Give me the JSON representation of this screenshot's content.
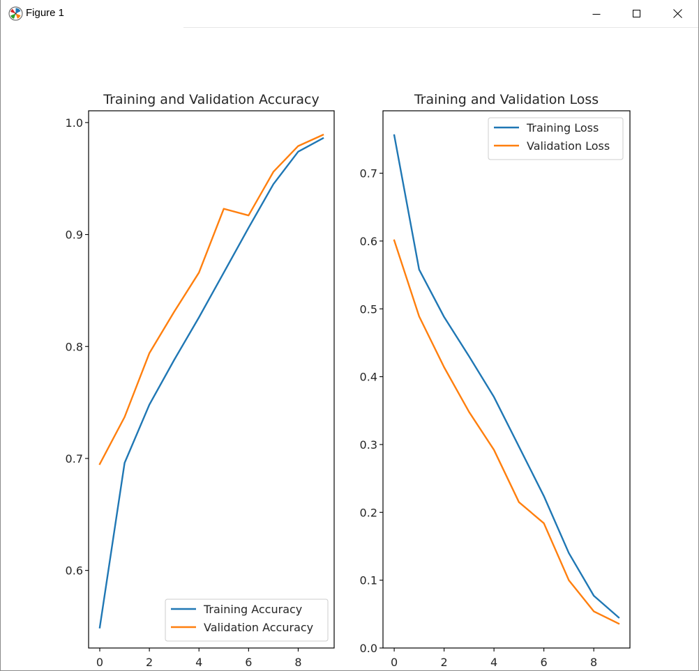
{
  "window": {
    "title": "Figure 1",
    "app_icon": "matplotlib-icon",
    "controls": {
      "minimize": "minimize-icon",
      "maximize": "maximize-icon",
      "close": "close-icon"
    }
  },
  "colors": {
    "series_blue": "#1f77b4",
    "series_orange": "#ff7f0e",
    "frame": "#000000",
    "text": "#262626"
  },
  "chart_data": [
    {
      "type": "line",
      "title": "Training and Validation Accuracy",
      "xlabel": "",
      "ylabel": "",
      "x": [
        0,
        1,
        2,
        3,
        4,
        5,
        6,
        7,
        8,
        9
      ],
      "xlim": [
        -0.45,
        9.45
      ],
      "ylim": [
        0.5307,
        1.0105
      ],
      "xticks": [
        0,
        2,
        4,
        6,
        8
      ],
      "yticks": [
        0.6,
        0.7,
        0.8,
        0.9,
        1.0
      ],
      "ytick_labels": [
        "0.6",
        "0.7",
        "0.8",
        "0.9",
        "1.0"
      ],
      "grid": false,
      "legend_loc": "lower right",
      "series": [
        {
          "name": "Training Accuracy",
          "color": "#1f77b4",
          "values": [
            0.549,
            0.696,
            0.748,
            0.788,
            0.826,
            0.866,
            0.906,
            0.945,
            0.974,
            0.986
          ]
        },
        {
          "name": "Validation Accuracy",
          "color": "#ff7f0e",
          "values": [
            0.695,
            0.737,
            0.794,
            0.831,
            0.866,
            0.923,
            0.917,
            0.956,
            0.979,
            0.989
          ]
        }
      ]
    },
    {
      "type": "line",
      "title": "Training and Validation Loss",
      "xlabel": "",
      "ylabel": "",
      "x": [
        0,
        1,
        2,
        3,
        4,
        5,
        6,
        7,
        8,
        9
      ],
      "xlim": [
        -0.45,
        9.45
      ],
      "ylim": [
        0.0,
        0.792
      ],
      "xticks": [
        0,
        2,
        4,
        6,
        8
      ],
      "yticks": [
        0.0,
        0.1,
        0.2,
        0.3,
        0.4,
        0.5,
        0.6,
        0.7
      ],
      "ytick_labels": [
        "0.0",
        "0.1",
        "0.2",
        "0.3",
        "0.4",
        "0.5",
        "0.6",
        "0.7"
      ],
      "grid": false,
      "legend_loc": "upper right",
      "series": [
        {
          "name": "Training Loss",
          "color": "#1f77b4",
          "values": [
            0.756,
            0.558,
            0.488,
            0.43,
            0.37,
            0.297,
            0.224,
            0.14,
            0.077,
            0.045
          ]
        },
        {
          "name": "Validation Loss",
          "color": "#ff7f0e",
          "values": [
            0.601,
            0.489,
            0.414,
            0.348,
            0.292,
            0.215,
            0.184,
            0.1,
            0.054,
            0.036
          ]
        }
      ]
    }
  ]
}
